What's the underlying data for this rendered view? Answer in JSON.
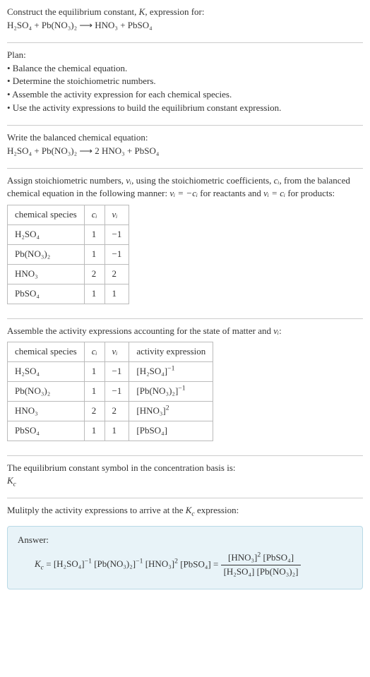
{
  "header": {
    "line1_a": "Construct the equilibrium constant, ",
    "line1_b": ", expression for:",
    "K": "K",
    "equation": "H₂SO₄ + Pb(NO₃)₂ ⟶ HNO₃ + PbSO₄"
  },
  "plan": {
    "title": "Plan:",
    "b1": "• Balance the chemical equation.",
    "b2": "• Determine the stoichiometric numbers.",
    "b3": "• Assemble the activity expression for each chemical species.",
    "b4": "• Use the activity expressions to build the equilibrium constant expression."
  },
  "balanced": {
    "title": "Write the balanced chemical equation:",
    "equation": "H₂SO₄ + Pb(NO₃)₂ ⟶ 2 HNO₃ + PbSO₄"
  },
  "stoich": {
    "intro_a": "Assign stoichiometric numbers, ",
    "nu_i": "νᵢ",
    "intro_b": ", using the stoichiometric coefficients, ",
    "c_i": "cᵢ",
    "intro_c": ", from the balanced chemical equation in the following manner: ",
    "rel1": "νᵢ = −cᵢ",
    "intro_d": " for reactants and ",
    "rel2": "νᵢ = cᵢ",
    "intro_e": " for products:",
    "table": {
      "h1": "chemical species",
      "h2": "cᵢ",
      "h3": "νᵢ",
      "rows": [
        {
          "s": "H₂SO₄",
          "c": "1",
          "n": "−1"
        },
        {
          "s": "Pb(NO₃)₂",
          "c": "1",
          "n": "−1"
        },
        {
          "s": "HNO₃",
          "c": "2",
          "n": "2"
        },
        {
          "s": "PbSO₄",
          "c": "1",
          "n": "1"
        }
      ]
    }
  },
  "activity": {
    "intro_a": "Assemble the activity expressions accounting for the state of matter and ",
    "nu_i": "νᵢ",
    "intro_b": ":",
    "table": {
      "h1": "chemical species",
      "h2": "cᵢ",
      "h3": "νᵢ",
      "h4": "activity expression",
      "rows": [
        {
          "s": "H₂SO₄",
          "c": "1",
          "n": "−1",
          "a_base": "[H₂SO₄]",
          "a_exp": "−1"
        },
        {
          "s": "Pb(NO₃)₂",
          "c": "1",
          "n": "−1",
          "a_base": "[Pb(NO₃)₂]",
          "a_exp": "−1"
        },
        {
          "s": "HNO₃",
          "c": "2",
          "n": "2",
          "a_base": "[HNO₃]",
          "a_exp": "2"
        },
        {
          "s": "PbSO₄",
          "c": "1",
          "n": "1",
          "a_base": "[PbSO₄]",
          "a_exp": ""
        }
      ]
    }
  },
  "symbol": {
    "title": "The equilibrium constant symbol in the concentration basis is:",
    "Kc": "K",
    "Kc_sub": "c"
  },
  "multiply": {
    "title_a": "Mulitply the activity expressions to arrive at the ",
    "Kc": "K",
    "Kc_sub": "c",
    "title_b": " expression:"
  },
  "answer": {
    "label": "Answer:",
    "lhs_K": "K",
    "lhs_sub": "c",
    "eq": " = ",
    "t1_base": "[H₂SO₄]",
    "t1_exp": "−1",
    "t2_base": "[Pb(NO₃)₂]",
    "t2_exp": "−1",
    "t3_base": "[HNO₃]",
    "t3_exp": "2",
    "t4_base": "[PbSO₄]",
    "eq2": " = ",
    "num_a": "[HNO₃]",
    "num_a_exp": "2",
    "num_b": " [PbSO₄]",
    "den": "[H₂SO₄] [Pb(NO₃)₂]"
  }
}
